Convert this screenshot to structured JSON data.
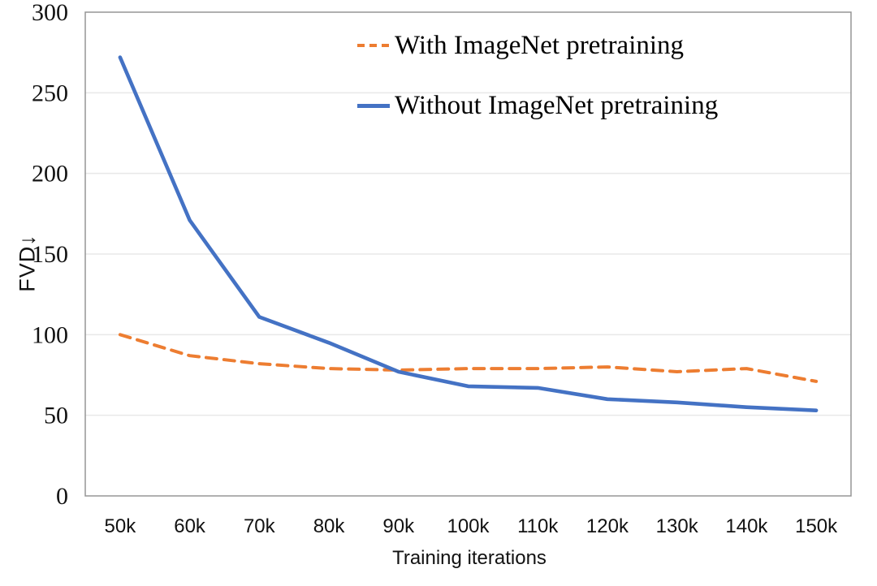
{
  "figure": {
    "background": "#ffffff"
  },
  "chart_data": {
    "type": "line",
    "title": "",
    "xlabel": "Training iterations",
    "ylabel": "FVD↓",
    "categories": [
      "50k",
      "60k",
      "70k",
      "80k",
      "90k",
      "100k",
      "110k",
      "120k",
      "130k",
      "140k",
      "150k"
    ],
    "series": [
      {
        "name": "With ImageNet pretraining",
        "color": "#ED7D31",
        "style": "dashed",
        "values": [
          100,
          87,
          82,
          79,
          78,
          79,
          79,
          80,
          77,
          79,
          71
        ]
      },
      {
        "name": "Without ImageNet pretraining",
        "color": "#4472C4",
        "style": "solid",
        "values": [
          272,
          171,
          111,
          95,
          77,
          68,
          67,
          60,
          58,
          55,
          53
        ]
      }
    ],
    "ylim": [
      0,
      300
    ],
    "yticks": [
      0,
      50,
      100,
      150,
      200,
      250,
      300
    ],
    "grid": true,
    "legend_position": "top-right"
  },
  "colors": {
    "gridline": "#e8e8e8",
    "plot_border": "#959595",
    "text": "#121212"
  }
}
